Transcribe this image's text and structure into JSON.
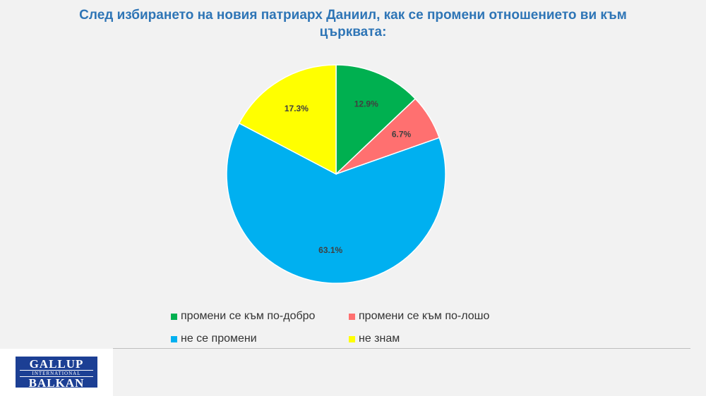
{
  "chart_data": {
    "type": "pie",
    "title_lines": [
      "След избирането на новия патриарх Даниил, как се промени отношението ви към",
      "църквата:"
    ],
    "slices": [
      {
        "label": "промени се към по-добро",
        "value": 12.9,
        "value_label": "12.9%",
        "color": "#00b050"
      },
      {
        "label": "промени се към по-лошо",
        "value": 6.7,
        "value_label": "6.7%",
        "color": "#ff7070"
      },
      {
        "label": "не се промени",
        "value": 63.1,
        "value_label": "63.1%",
        "color": "#00b0f0"
      },
      {
        "label": "не знам",
        "value": 17.3,
        "value_label": "17.3%",
        "color": "#ffff00"
      }
    ],
    "legend_position": "bottom"
  },
  "logo": {
    "top": "GALLUP",
    "middle": "INTERNATIONAL",
    "bottom": "BALKAN"
  }
}
